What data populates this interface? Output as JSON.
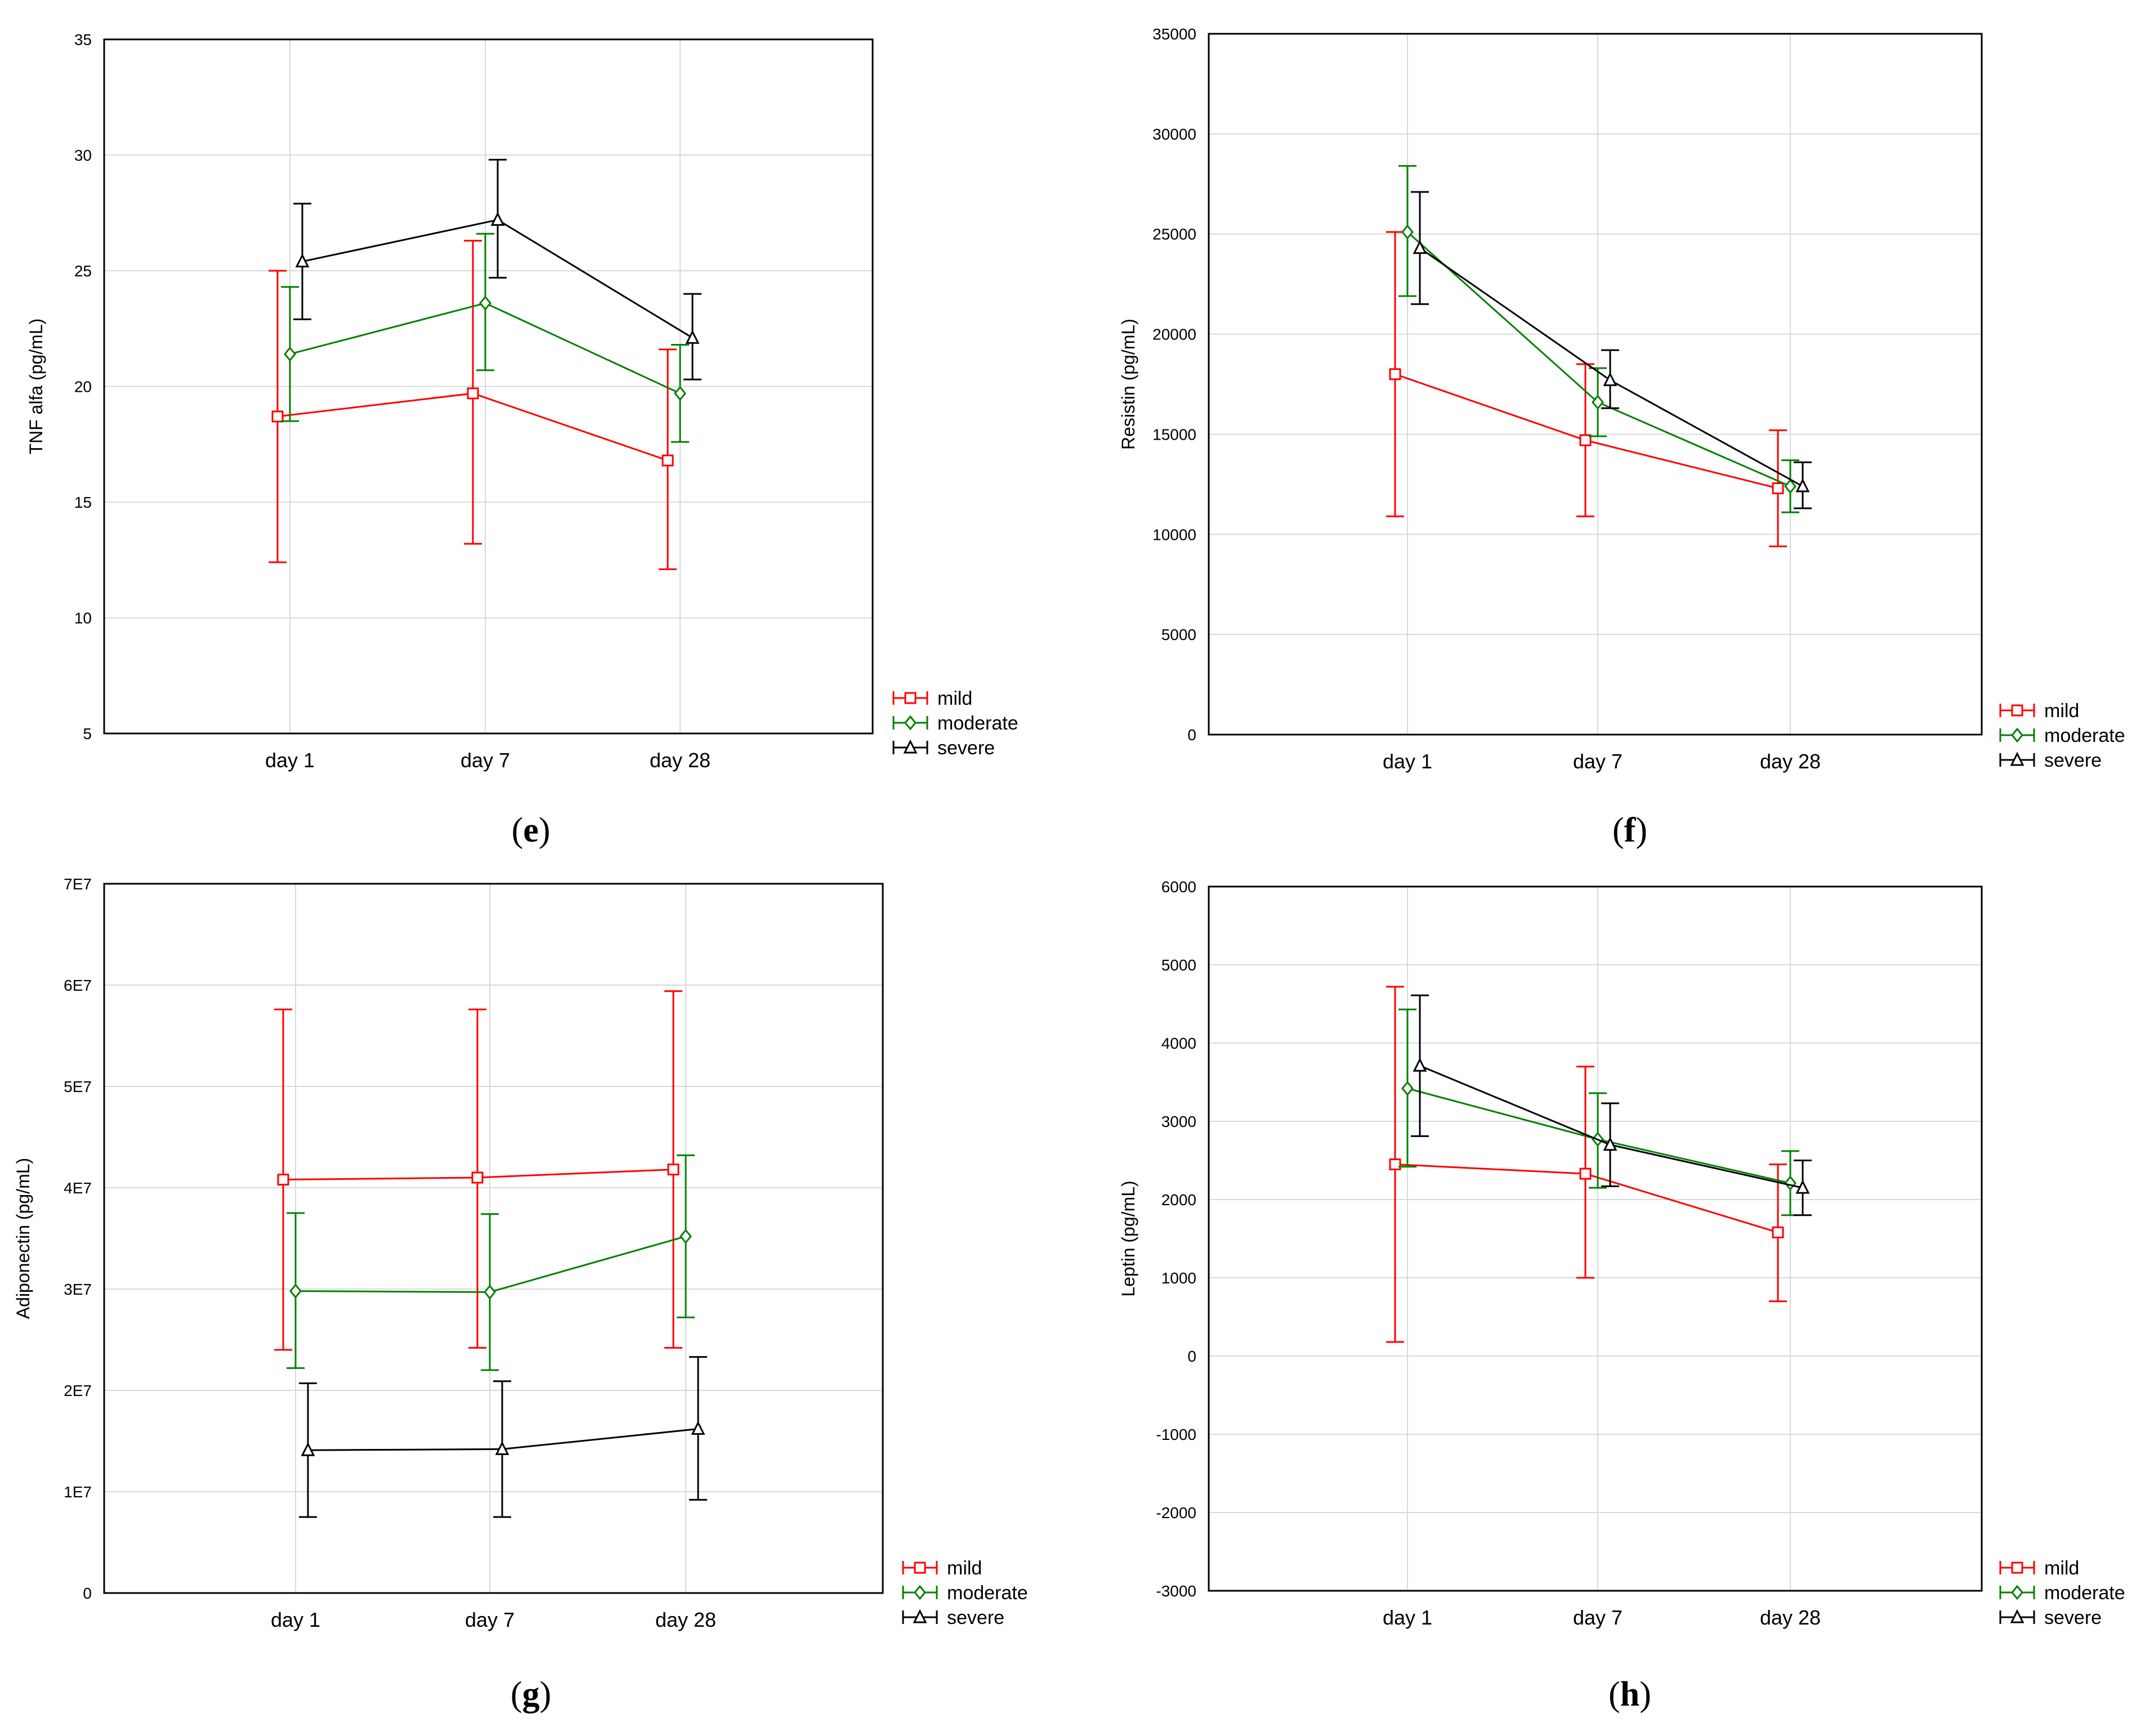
{
  "figure": {
    "panels": [
      {
        "id": "e",
        "label_open": "(",
        "label_letter": "e",
        "label_close": ")"
      },
      {
        "id": "f",
        "label_open": "(",
        "label_letter": "f",
        "label_close": ")"
      },
      {
        "id": "g",
        "label_open": "(",
        "label_letter": "g",
        "label_close": ")"
      },
      {
        "id": "h",
        "label_open": "(",
        "label_letter": "h",
        "label_close": ")"
      }
    ]
  },
  "colors": {
    "mild": "#ff0000",
    "moderate": "#008000",
    "severe": "#000000",
    "grid": "#d9d9d9"
  },
  "chart_data": [
    {
      "panel": "e",
      "type": "line",
      "ylabel": "TNF alfa (pg/mL)",
      "ylim": [
        5,
        35
      ],
      "yticks": [
        5,
        10,
        15,
        20,
        25,
        30,
        35
      ],
      "ytick_labels": [
        "5",
        "10",
        "15",
        "20",
        "25",
        "30",
        "35"
      ],
      "categories": [
        "day 1",
        "day 7",
        "day 28"
      ],
      "legend": [
        "mild",
        "moderate",
        "severe"
      ],
      "series": [
        {
          "name": "mild",
          "values": [
            18.7,
            19.7,
            16.8
          ],
          "lower": [
            12.4,
            13.2,
            12.1
          ],
          "upper": [
            25.0,
            26.3,
            21.6
          ]
        },
        {
          "name": "moderate",
          "values": [
            21.4,
            23.6,
            19.7
          ],
          "lower": [
            18.5,
            20.7,
            17.6
          ],
          "upper": [
            24.3,
            26.6,
            21.8
          ]
        },
        {
          "name": "severe",
          "values": [
            25.4,
            27.2,
            22.1
          ],
          "lower": [
            22.9,
            24.7,
            20.3
          ],
          "upper": [
            27.9,
            29.8,
            24.0
          ]
        }
      ]
    },
    {
      "panel": "f",
      "type": "line",
      "ylabel": "Resistin (pg/mL)",
      "ylim": [
        0,
        35000
      ],
      "yticks": [
        0,
        5000,
        10000,
        15000,
        20000,
        25000,
        30000,
        35000
      ],
      "ytick_labels": [
        "0",
        "5000",
        "10000",
        "15000",
        "20000",
        "25000",
        "30000",
        "35000"
      ],
      "categories": [
        "day 1",
        "day 7",
        "day 28"
      ],
      "legend": [
        "mild",
        "moderate",
        "severe"
      ],
      "series": [
        {
          "name": "mild",
          "values": [
            18000,
            14700,
            12300
          ],
          "lower": [
            10900,
            10900,
            9400
          ],
          "upper": [
            25100,
            18500,
            15200
          ]
        },
        {
          "name": "moderate",
          "values": [
            25100,
            16600,
            12400
          ],
          "lower": [
            21900,
            14900,
            11100
          ],
          "upper": [
            28400,
            18300,
            13700
          ]
        },
        {
          "name": "severe",
          "values": [
            24300,
            17700,
            12400
          ],
          "lower": [
            21500,
            16300,
            11300
          ],
          "upper": [
            27100,
            19200,
            13600
          ]
        }
      ]
    },
    {
      "panel": "g",
      "type": "line",
      "ylabel": "Adiponectin (pg/mL)",
      "ylim": [
        0,
        70000000
      ],
      "yticks": [
        0,
        10000000,
        20000000,
        30000000,
        40000000,
        50000000,
        60000000,
        70000000
      ],
      "ytick_labels": [
        "0",
        "1E7",
        "2E7",
        "3E7",
        "4E7",
        "5E7",
        "6E7",
        "7E7"
      ],
      "categories": [
        "day 1",
        "day 7",
        "day 28"
      ],
      "legend": [
        "mild",
        "moderate",
        "severe"
      ],
      "series": [
        {
          "name": "mild",
          "values": [
            40800000,
            41000000,
            41800000
          ],
          "lower": [
            24000000,
            24200000,
            24200000
          ],
          "upper": [
            57600000,
            57600000,
            59400000
          ]
        },
        {
          "name": "moderate",
          "values": [
            29800000,
            29700000,
            35200000
          ],
          "lower": [
            22200000,
            22000000,
            27200000
          ],
          "upper": [
            37500000,
            37400000,
            43200000
          ]
        },
        {
          "name": "severe",
          "values": [
            14100000,
            14200000,
            16200000
          ],
          "lower": [
            7500000,
            7500000,
            9200000
          ],
          "upper": [
            20700000,
            20900000,
            23300000
          ]
        }
      ]
    },
    {
      "panel": "h",
      "type": "line",
      "ylabel": "Leptin (pg/mL)",
      "ylim": [
        -3000,
        6000
      ],
      "yticks": [
        -3000,
        -2000,
        -1000,
        0,
        1000,
        2000,
        3000,
        4000,
        5000,
        6000
      ],
      "ytick_labels": [
        "-3000",
        "-2000",
        "-1000",
        "0",
        "1000",
        "2000",
        "3000",
        "4000",
        "5000",
        "6000"
      ],
      "categories": [
        "day 1",
        "day 7",
        "day 28"
      ],
      "legend": [
        "mild",
        "moderate",
        "severe"
      ],
      "series": [
        {
          "name": "mild",
          "values": [
            2450,
            2330,
            1580
          ],
          "lower": [
            180,
            1000,
            700
          ],
          "upper": [
            4720,
            3700,
            2450
          ]
        },
        {
          "name": "moderate",
          "values": [
            3420,
            2770,
            2210
          ],
          "lower": [
            2420,
            2150,
            1800
          ],
          "upper": [
            4430,
            3360,
            2620
          ]
        },
        {
          "name": "severe",
          "values": [
            3710,
            2700,
            2150
          ],
          "lower": [
            2810,
            2170,
            1800
          ],
          "upper": [
            4610,
            3230,
            2500
          ]
        }
      ]
    }
  ]
}
